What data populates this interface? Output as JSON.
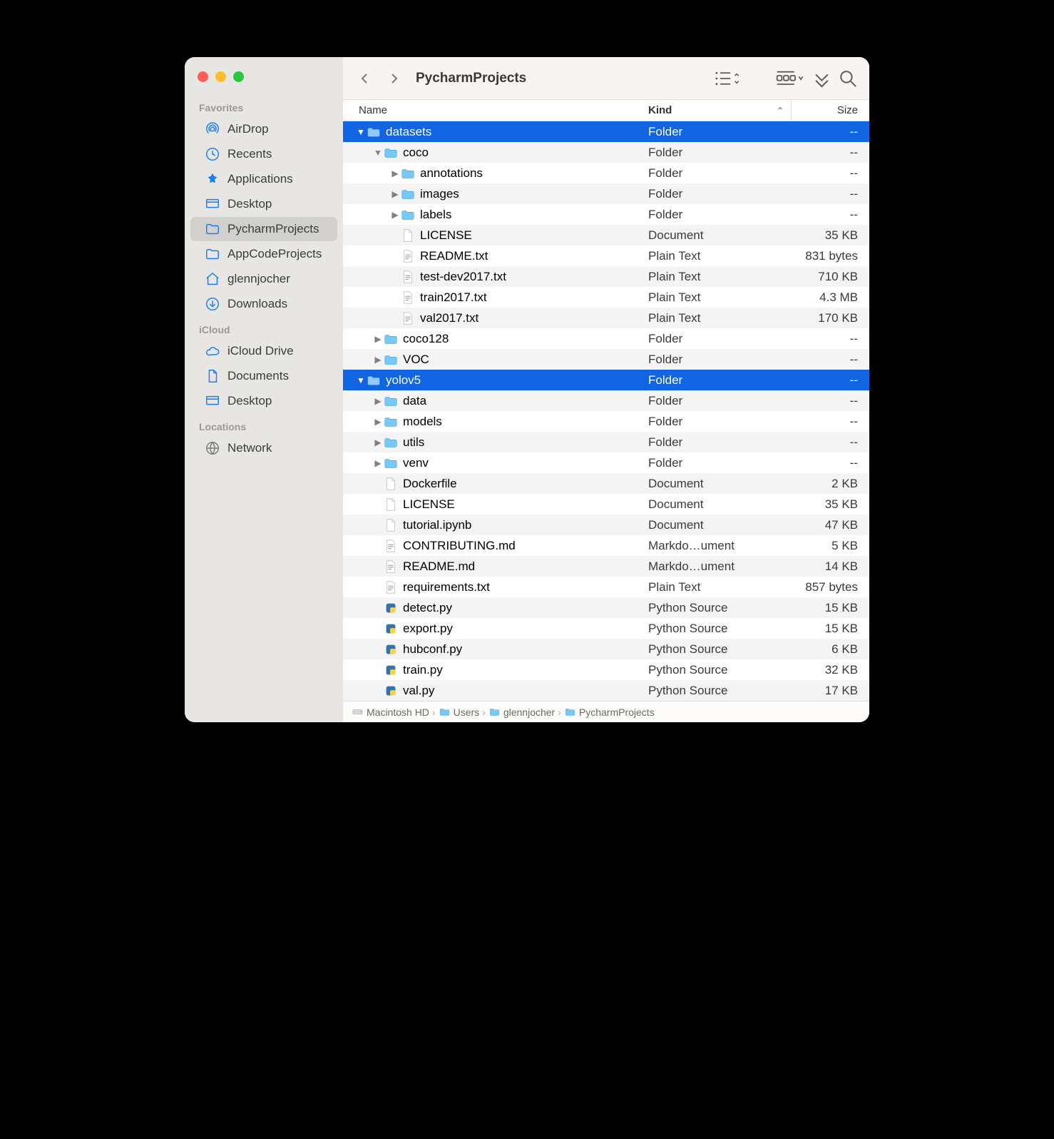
{
  "colors": {
    "selection": "#1164e2",
    "sidebar_bg": "#e8e6e3",
    "toolbar_bg": "#f7f4f1",
    "alt_row": "#f4f4f4",
    "icon_blue": "#1e7df2",
    "icon_folder": "#63c3f7"
  },
  "window": {
    "title": "PycharmProjects"
  },
  "sidebar": {
    "sections": [
      {
        "label": "Favorites",
        "items": [
          {
            "icon": "airdrop",
            "label": "AirDrop"
          },
          {
            "icon": "clock",
            "label": "Recents"
          },
          {
            "icon": "apps",
            "label": "Applications"
          },
          {
            "icon": "desktop",
            "label": "Desktop"
          },
          {
            "icon": "folder",
            "label": "PycharmProjects",
            "selected": true
          },
          {
            "icon": "folder",
            "label": "AppCodeProjects"
          },
          {
            "icon": "home",
            "label": "glennjocher"
          },
          {
            "icon": "download",
            "label": "Downloads"
          }
        ]
      },
      {
        "label": "iCloud",
        "items": [
          {
            "icon": "cloud",
            "label": "iCloud Drive"
          },
          {
            "icon": "doc",
            "label": "Documents"
          },
          {
            "icon": "desktop",
            "label": "Desktop"
          }
        ]
      },
      {
        "label": "Locations",
        "items": [
          {
            "icon": "network",
            "label": "Network",
            "gray": true
          }
        ]
      }
    ]
  },
  "columns": {
    "name": "Name",
    "kind": "Kind",
    "size": "Size"
  },
  "rows": [
    {
      "depth": 0,
      "disclosure": "down",
      "icon": "folder",
      "name": "datasets",
      "kind": "Folder",
      "size": "--",
      "selected": true
    },
    {
      "depth": 1,
      "disclosure": "down",
      "icon": "folder",
      "name": "coco",
      "kind": "Folder",
      "size": "--",
      "alt": true
    },
    {
      "depth": 2,
      "disclosure": "right",
      "icon": "folder",
      "name": "annotations",
      "kind": "Folder",
      "size": "--"
    },
    {
      "depth": 2,
      "disclosure": "right",
      "icon": "folder",
      "name": "images",
      "kind": "Folder",
      "size": "--",
      "alt": true
    },
    {
      "depth": 2,
      "disclosure": "right",
      "icon": "folder",
      "name": "labels",
      "kind": "Folder",
      "size": "--"
    },
    {
      "depth": 2,
      "disclosure": "none",
      "icon": "doc-blank",
      "name": "LICENSE",
      "kind": "Document",
      "size": "35 KB",
      "alt": true
    },
    {
      "depth": 2,
      "disclosure": "none",
      "icon": "txt",
      "name": "README.txt",
      "kind": "Plain Text",
      "size": "831 bytes"
    },
    {
      "depth": 2,
      "disclosure": "none",
      "icon": "txt",
      "name": "test-dev2017.txt",
      "kind": "Plain Text",
      "size": "710 KB",
      "alt": true
    },
    {
      "depth": 2,
      "disclosure": "none",
      "icon": "txt",
      "name": "train2017.txt",
      "kind": "Plain Text",
      "size": "4.3 MB"
    },
    {
      "depth": 2,
      "disclosure": "none",
      "icon": "txt",
      "name": "val2017.txt",
      "kind": "Plain Text",
      "size": "170 KB",
      "alt": true
    },
    {
      "depth": 1,
      "disclosure": "right",
      "icon": "folder",
      "name": "coco128",
      "kind": "Folder",
      "size": "--"
    },
    {
      "depth": 1,
      "disclosure": "right",
      "icon": "folder",
      "name": "VOC",
      "kind": "Folder",
      "size": "--",
      "alt": true
    },
    {
      "depth": 0,
      "disclosure": "down",
      "icon": "folder",
      "name": "yolov5",
      "kind": "Folder",
      "size": "--",
      "selected": true
    },
    {
      "depth": 1,
      "disclosure": "right",
      "icon": "folder",
      "name": "data",
      "kind": "Folder",
      "size": "--",
      "alt": true
    },
    {
      "depth": 1,
      "disclosure": "right",
      "icon": "folder",
      "name": "models",
      "kind": "Folder",
      "size": "--"
    },
    {
      "depth": 1,
      "disclosure": "right",
      "icon": "folder",
      "name": "utils",
      "kind": "Folder",
      "size": "--",
      "alt": true
    },
    {
      "depth": 1,
      "disclosure": "right",
      "icon": "folder",
      "name": "venv",
      "kind": "Folder",
      "size": "--"
    },
    {
      "depth": 1,
      "disclosure": "none",
      "icon": "doc-blank",
      "name": "Dockerfile",
      "kind": "Document",
      "size": "2 KB",
      "alt": true
    },
    {
      "depth": 1,
      "disclosure": "none",
      "icon": "doc-blank",
      "name": "LICENSE",
      "kind": "Document",
      "size": "35 KB"
    },
    {
      "depth": 1,
      "disclosure": "none",
      "icon": "doc-blank",
      "name": "tutorial.ipynb",
      "kind": "Document",
      "size": "47 KB",
      "alt": true
    },
    {
      "depth": 1,
      "disclosure": "none",
      "icon": "md",
      "name": "CONTRIBUTING.md",
      "kind": "Markdo…ument",
      "size": "5 KB"
    },
    {
      "depth": 1,
      "disclosure": "none",
      "icon": "md",
      "name": "README.md",
      "kind": "Markdo…ument",
      "size": "14 KB",
      "alt": true
    },
    {
      "depth": 1,
      "disclosure": "none",
      "icon": "txt",
      "name": "requirements.txt",
      "kind": "Plain Text",
      "size": "857 bytes"
    },
    {
      "depth": 1,
      "disclosure": "none",
      "icon": "py",
      "name": "detect.py",
      "kind": "Python Source",
      "size": "15 KB",
      "alt": true
    },
    {
      "depth": 1,
      "disclosure": "none",
      "icon": "py",
      "name": "export.py",
      "kind": "Python Source",
      "size": "15 KB"
    },
    {
      "depth": 1,
      "disclosure": "none",
      "icon": "py",
      "name": "hubconf.py",
      "kind": "Python Source",
      "size": "6 KB",
      "alt": true
    },
    {
      "depth": 1,
      "disclosure": "none",
      "icon": "py",
      "name": "train.py",
      "kind": "Python Source",
      "size": "32 KB"
    },
    {
      "depth": 1,
      "disclosure": "none",
      "icon": "py",
      "name": "val.py",
      "kind": "Python Source",
      "size": "17 KB",
      "alt": true
    }
  ],
  "pathbar": [
    {
      "icon": "hd",
      "label": "Macintosh HD"
    },
    {
      "icon": "folder",
      "label": "Users"
    },
    {
      "icon": "folder",
      "label": "glennjocher"
    },
    {
      "icon": "folder",
      "label": "PycharmProjects"
    }
  ]
}
